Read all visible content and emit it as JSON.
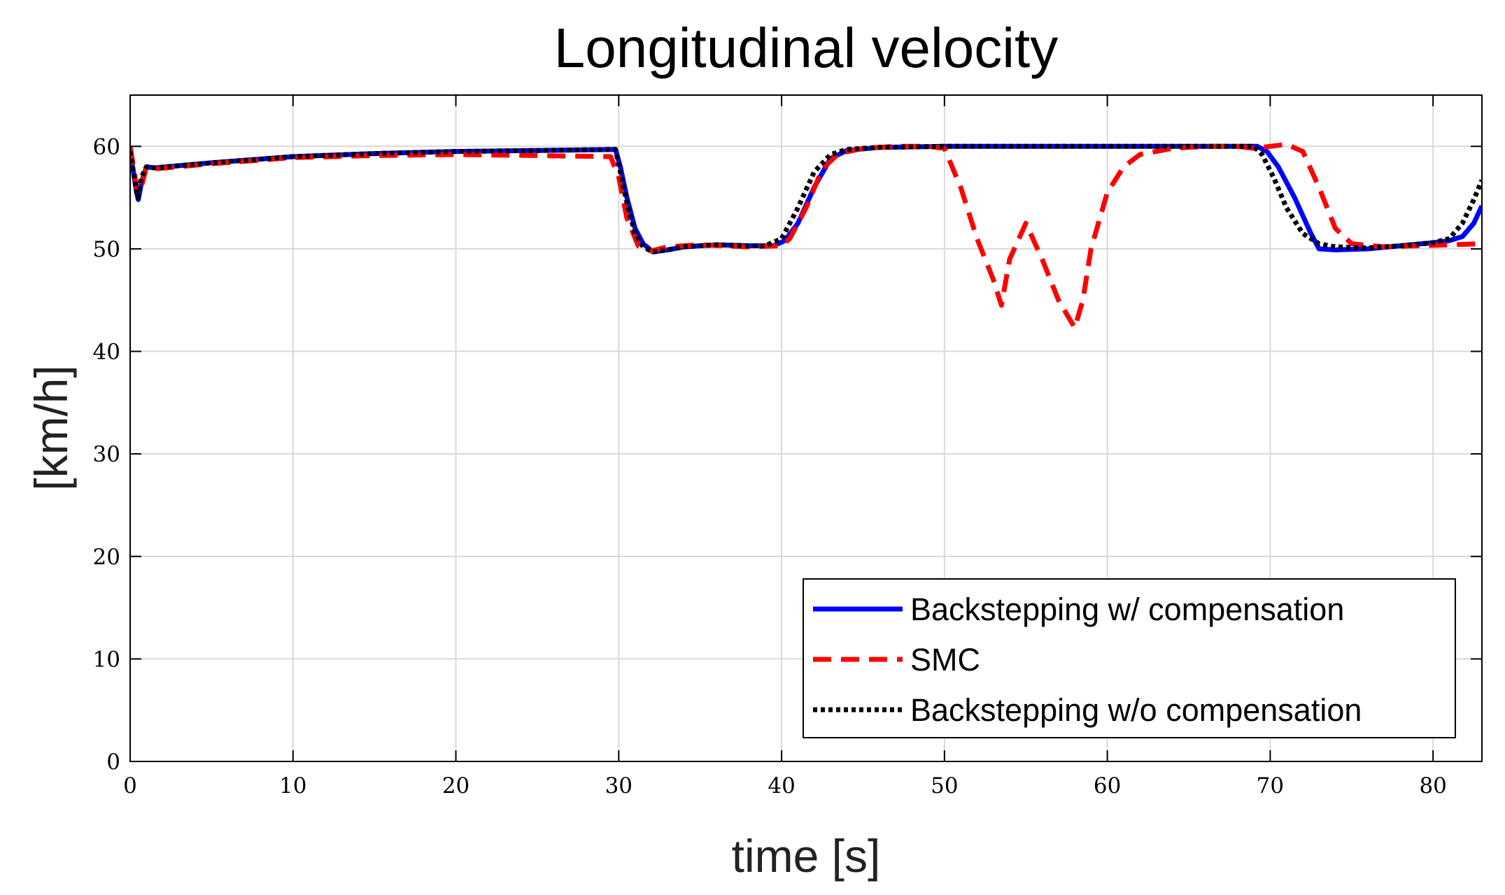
{
  "chart_data": {
    "type": "line",
    "title": "Longitudinal velocity",
    "xlabel": "time [s]",
    "ylabel": "[km/h]",
    "xlim": [
      0,
      83
    ],
    "ylim": [
      0,
      65
    ],
    "xticks": [
      0,
      10,
      20,
      30,
      40,
      50,
      60,
      70,
      80
    ],
    "yticks": [
      0,
      10,
      20,
      30,
      40,
      50,
      60
    ],
    "grid": true,
    "legend_position": "bottom-right",
    "series": [
      {
        "name": "Backstepping w/ compensation",
        "color": "#0000ff",
        "style": "solid",
        "x": [
          0,
          0.2,
          0.4,
          0.5,
          0.7,
          1.0,
          1.5,
          5,
          10,
          15,
          20,
          25,
          29.8,
          30.1,
          30.5,
          31,
          31.5,
          32.1,
          33,
          34,
          36,
          38,
          39.5,
          40.2,
          41,
          42,
          43,
          44,
          46,
          50,
          55,
          60,
          65,
          69.2,
          69.8,
          70.5,
          71.5,
          72.5,
          73,
          74,
          76,
          78,
          80,
          81,
          81.8,
          82.5,
          83
        ],
        "y": [
          59.5,
          57.5,
          55.5,
          54.8,
          56.5,
          58,
          57.9,
          58.4,
          59,
          59.3,
          59.5,
          59.6,
          59.7,
          58,
          55,
          52,
          50.5,
          49.7,
          49.9,
          50.2,
          50.4,
          50.3,
          50.3,
          50.8,
          52.5,
          56,
          58.8,
          59.6,
          59.9,
          60,
          60,
          60,
          60,
          60,
          59.5,
          58,
          55,
          51.5,
          50,
          49.9,
          50,
          50.3,
          50.6,
          50.8,
          51.2,
          52.5,
          54.2
        ]
      },
      {
        "name": "SMC",
        "color": "#ff0000",
        "style": "dashed",
        "x": [
          0,
          0.2,
          0.4,
          0.6,
          1.0,
          1.5,
          5,
          10,
          15,
          20,
          25,
          29.5,
          30,
          30.5,
          31.2,
          32,
          33,
          35,
          38,
          40,
          40.5,
          41.5,
          42.5,
          43.5,
          45,
          47,
          49,
          50,
          51,
          52,
          53,
          53.5,
          54,
          55,
          56,
          57,
          58,
          58.5,
          59,
          60,
          61,
          62,
          64,
          66,
          68,
          69,
          70,
          71,
          72,
          73,
          74,
          75,
          77,
          79,
          81,
          83
        ],
        "y": [
          60,
          58,
          56,
          55.5,
          58,
          57.8,
          58.3,
          58.9,
          59.1,
          59.2,
          59.1,
          59,
          57,
          53,
          50.3,
          49.8,
          50.2,
          50.4,
          50.2,
          50.3,
          51,
          54,
          57.8,
          59.3,
          59.8,
          60,
          60,
          59.8,
          56,
          51,
          47,
          44.5,
          49,
          52.5,
          49,
          45,
          42.3,
          45,
          50,
          55.5,
          58,
          59.2,
          59.8,
          60,
          60,
          59.8,
          60,
          60.2,
          59.5,
          56,
          52,
          50.5,
          50.2,
          50.3,
          50.4,
          50.5
        ]
      },
      {
        "name": "Backstepping w/o compensation",
        "color": "#000000",
        "style": "dotted",
        "x": [
          0,
          0.2,
          0.4,
          0.5,
          0.7,
          1.0,
          1.5,
          5,
          10,
          15,
          20,
          25,
          29.8,
          30.1,
          30.5,
          31,
          31.5,
          32.1,
          33,
          34,
          36,
          38,
          39,
          40,
          41,
          42,
          43,
          44,
          46,
          50,
          55,
          60,
          65,
          69,
          69.5,
          70.2,
          71,
          72,
          73,
          74,
          76,
          78,
          80,
          81,
          81.8,
          82.5,
          83
        ],
        "y": [
          59.5,
          57.5,
          55.5,
          55,
          57,
          58,
          57.9,
          58.4,
          59,
          59.3,
          59.5,
          59.6,
          59.7,
          57.5,
          54.5,
          51.5,
          50.2,
          49.7,
          49.9,
          50.2,
          50.4,
          50.3,
          50.3,
          51,
          54,
          57.5,
          59.2,
          59.7,
          59.9,
          60,
          60,
          60,
          60,
          60,
          59.2,
          57,
          54,
          51.5,
          50.5,
          50.2,
          50.1,
          50.3,
          50.6,
          51,
          52.5,
          54.8,
          56.7
        ]
      }
    ]
  }
}
